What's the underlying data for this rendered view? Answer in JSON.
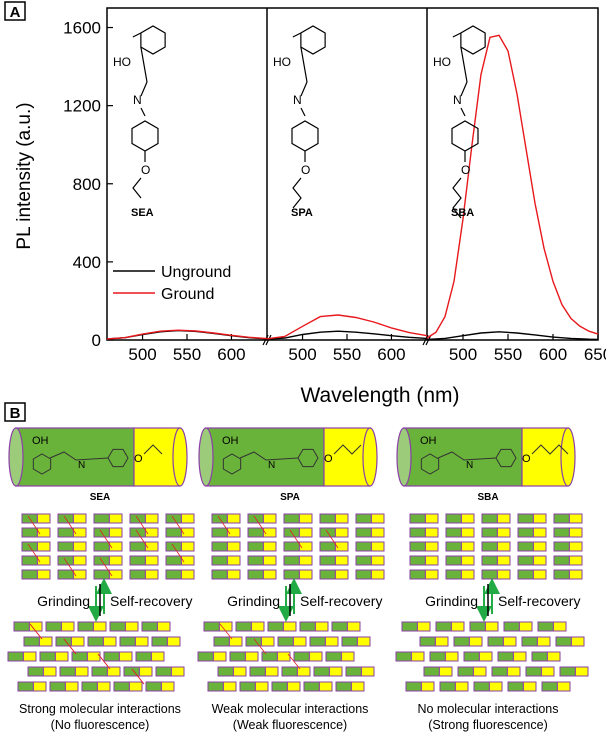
{
  "panel_a": {
    "label": "A",
    "ylabel": "PL intensity (a.u.)",
    "xlabel": "Wavelength (nm)",
    "compounds": [
      "SEA",
      "SPA",
      "SBA"
    ],
    "legend": {
      "ungrounded": "Unground",
      "ground": "Ground"
    }
  },
  "panel_b": {
    "label": "B",
    "columns": [
      {
        "compound": "SEA",
        "grind_label": "Grinding",
        "recovery_label": "Self-recovery",
        "caption_line1": "Strong molecular interactions",
        "caption_line2": "(No fluorescence)"
      },
      {
        "compound": "SPA",
        "grind_label": "Grinding",
        "recovery_label": "Self-recovery",
        "caption_line1": "Weak molecular interactions",
        "caption_line2": "(Weak fluorescence)"
      },
      {
        "compound": "SBA",
        "grind_label": "Grinding",
        "recovery_label": "Self-recovery",
        "caption_line1": "No molecular interactions",
        "caption_line2": "(Strong fluorescence)"
      }
    ],
    "colors": {
      "green": "#6ab33b",
      "yellow": "#ffff00",
      "outline": "#8b3fa8",
      "link": "#e0202a",
      "arrow_down": "#22aa44",
      "arrow_up": "#22aa44"
    }
  },
  "chart_data": {
    "type": "line",
    "xlabel": "Wavelength (nm)",
    "ylabel": "PL intensity (a.u.)",
    "ylim": [
      0,
      1700
    ],
    "yticks": [
      0,
      400,
      800,
      1200,
      1600
    ],
    "subplots": [
      {
        "name": "SEA",
        "xlim": [
          460,
          640
        ],
        "xticks": [
          500,
          550,
          600
        ],
        "series": [
          {
            "name": "Unground",
            "color": "#000000",
            "x": [
              460,
              480,
              500,
              520,
              540,
              560,
              580,
              600,
              620,
              640
            ],
            "y": [
              5,
              12,
              28,
              42,
              48,
              44,
              34,
              22,
              12,
              6
            ]
          },
          {
            "name": "Ground",
            "color": "#e8191d",
            "x": [
              460,
              480,
              500,
              520,
              540,
              560,
              580,
              600,
              620,
              640
            ],
            "y": [
              5,
              12,
              30,
              45,
              50,
              46,
              36,
              24,
              14,
              7
            ]
          }
        ]
      },
      {
        "name": "SPA",
        "xlim": [
          460,
          640
        ],
        "xticks": [
          500,
          550,
          600
        ],
        "series": [
          {
            "name": "Unground",
            "color": "#000000",
            "x": [
              460,
              480,
              500,
              520,
              540,
              560,
              580,
              600,
              620,
              640
            ],
            "y": [
              4,
              10,
              28,
              40,
              45,
              40,
              32,
              22,
              14,
              8
            ]
          },
          {
            "name": "Ground",
            "color": "#e8191d",
            "x": [
              460,
              480,
              500,
              520,
              540,
              560,
              580,
              600,
              620,
              640
            ],
            "y": [
              6,
              18,
              70,
              120,
              128,
              115,
              92,
              62,
              38,
              22
            ]
          }
        ]
      },
      {
        "name": "SBA",
        "xlim": [
          460,
          650
        ],
        "xticks": [
          500,
          550,
          600,
          650
        ],
        "series": [
          {
            "name": "Unground",
            "color": "#000000",
            "x": [
              460,
              480,
              500,
              520,
              540,
              560,
              580,
              600,
              620,
              640,
              650
            ],
            "y": [
              3,
              8,
              22,
              36,
              42,
              36,
              26,
              15,
              8,
              4,
              3
            ]
          },
          {
            "name": "Ground",
            "color": "#e8191d",
            "x": [
              460,
              470,
              480,
              490,
              500,
              510,
              520,
              530,
              540,
              550,
              560,
              570,
              580,
              590,
              600,
              610,
              620,
              630,
              640,
              650
            ],
            "y": [
              10,
              40,
              120,
              300,
              620,
              1000,
              1360,
              1550,
              1560,
              1480,
              1260,
              980,
              700,
              470,
              300,
              180,
              110,
              70,
              45,
              30
            ]
          }
        ]
      }
    ]
  }
}
